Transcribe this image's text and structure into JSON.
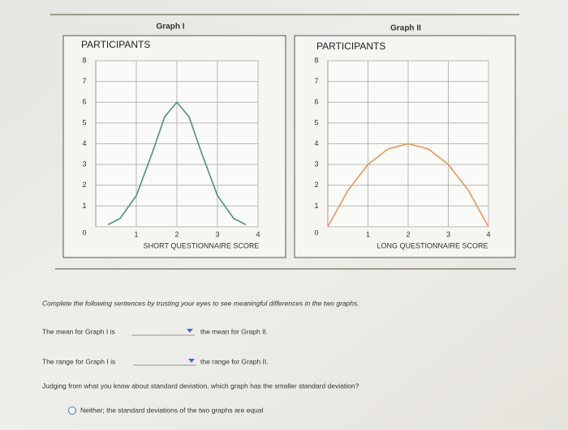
{
  "chart_data": [
    {
      "type": "line",
      "title": "Graph I",
      "y_label": "PARTICIPANTS",
      "x_label": "SHORT QUESTIONNAIRE SCORE",
      "x": [
        0.3,
        0.6,
        1.0,
        1.4,
        1.7,
        2.0,
        2.3,
        2.6,
        3.0,
        3.4,
        3.7
      ],
      "values": [
        0.1,
        0.4,
        1.5,
        3.6,
        5.3,
        6,
        5.3,
        3.6,
        1.5,
        0.4,
        0.1
      ],
      "color": "#4e9479",
      "xlim": [
        0,
        4
      ],
      "ylim": [
        0,
        8
      ],
      "xticks": [
        1,
        2,
        3,
        4
      ],
      "yticks": [
        0,
        1,
        2,
        3,
        4,
        5,
        6,
        7,
        8
      ],
      "grid": true
    },
    {
      "type": "line",
      "title": "Graph II",
      "y_label": "PARTICIPANTS",
      "x_label": "LONG QUESTIONNAIRE SCORE",
      "x": [
        0,
        0.5,
        1.0,
        1.5,
        2.0,
        2.5,
        3.0,
        3.5,
        4.0
      ],
      "values": [
        0,
        1.75,
        3,
        3.75,
        4,
        3.75,
        3,
        1.75,
        0
      ],
      "color": "#e8975a",
      "xlim": [
        0,
        4
      ],
      "ylim": [
        0,
        8
      ],
      "xticks": [
        1,
        2,
        3,
        4
      ],
      "yticks": [
        0,
        1,
        2,
        3,
        4,
        5,
        6,
        7,
        8
      ],
      "grid": true
    }
  ],
  "instructions": "Complete the following sentences by trusting your eyes to see meaningful differences in the two graphs.",
  "sentences": [
    {
      "before": "The mean for Graph I is",
      "after": "the mean for Graph II."
    },
    {
      "before": "The range for Graph I is",
      "after": "the range for Graph II."
    }
  ],
  "question": "Judging from what you know about standard deviation, which graph has the smaller standard deviation?",
  "options": [
    "Neither; the standard deviations of the two graphs are equal"
  ]
}
